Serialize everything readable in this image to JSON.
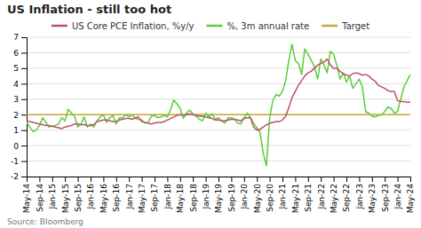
{
  "chart_data": {
    "type": "line",
    "title": "US Inflation - still too hot",
    "source": "Source: Bloomberg",
    "categories": [
      "May-14",
      null,
      null,
      null,
      "Sep-14",
      null,
      null,
      null,
      "Jan-15",
      null,
      null,
      null,
      "May-15",
      null,
      null,
      null,
      "Sep-15",
      null,
      null,
      null,
      "Jan-16",
      null,
      null,
      null,
      "May-16",
      null,
      null,
      null,
      "Sep-16",
      null,
      null,
      null,
      "Jan-17",
      null,
      null,
      null,
      "May-17",
      null,
      null,
      null,
      "Sep-17",
      null,
      null,
      null,
      "Jan-18",
      null,
      null,
      null,
      "May-18",
      null,
      null,
      null,
      "Sep-18",
      null,
      null,
      null,
      "Jan-19",
      null,
      null,
      null,
      "May-19",
      null,
      null,
      null,
      "Sep-19",
      null,
      null,
      null,
      "Jan-20",
      null,
      null,
      null,
      "May-20",
      null,
      null,
      null,
      "Sep-20",
      null,
      null,
      null,
      "Jan-21",
      null,
      null,
      null,
      "May-21",
      null,
      null,
      null,
      "Sep-21",
      null,
      null,
      null,
      "Jan-22",
      null,
      null,
      null,
      "May-22",
      null,
      null,
      null,
      "Sep-22",
      null,
      null,
      null,
      "Jan-23",
      null,
      null,
      null,
      "May-23",
      null,
      null,
      null,
      "Sep-23",
      null,
      null,
      null,
      "Jan-24",
      null,
      null,
      null,
      "May-24"
    ],
    "series": [
      {
        "name": "US Core PCE Inflation, %y/y",
        "color": "#c0506a",
        "values": [
          1.55,
          1.55,
          1.5,
          1.45,
          1.4,
          1.35,
          1.3,
          1.3,
          1.25,
          1.2,
          1.15,
          1.1,
          1.2,
          1.25,
          1.3,
          1.4,
          1.4,
          1.35,
          1.35,
          1.3,
          1.3,
          1.35,
          1.55,
          1.6,
          1.65,
          1.65,
          1.6,
          1.55,
          1.55,
          1.65,
          1.7,
          1.75,
          1.75,
          1.7,
          1.8,
          1.85,
          1.55,
          1.5,
          1.45,
          1.4,
          1.45,
          1.5,
          1.5,
          1.55,
          1.65,
          1.75,
          1.85,
          1.95,
          2.0,
          1.95,
          2.0,
          2.05,
          2.0,
          1.95,
          1.9,
          1.9,
          1.85,
          1.8,
          1.75,
          1.65,
          1.65,
          1.6,
          1.6,
          1.65,
          1.7,
          1.7,
          1.65,
          1.6,
          1.75,
          1.8,
          1.8,
          1.2,
          1.0,
          1.05,
          1.2,
          1.35,
          1.45,
          1.5,
          1.55,
          1.55,
          1.65,
          1.9,
          2.45,
          3.1,
          3.5,
          3.9,
          4.2,
          4.5,
          4.7,
          4.8,
          5.0,
          5.2,
          5.3,
          5.4,
          5.6,
          5.2,
          5.0,
          5.0,
          4.8,
          4.65,
          4.55,
          4.5,
          4.65,
          4.7,
          4.65,
          4.55,
          4.6,
          4.5,
          4.3,
          4.15,
          3.9,
          3.8,
          3.7,
          3.55,
          3.5,
          3.5,
          2.9,
          2.85,
          2.85,
          2.8,
          2.8
        ]
      },
      {
        "name": "%, 3m annual rate",
        "color": "#5acd3a",
        "values": [
          1.5,
          1.2,
          0.9,
          1.0,
          1.3,
          1.8,
          1.5,
          1.2,
          1.25,
          1.3,
          1.4,
          1.8,
          1.6,
          2.35,
          2.1,
          1.9,
          1.2,
          1.4,
          1.85,
          1.2,
          1.4,
          1.2,
          1.6,
          1.85,
          2.0,
          1.5,
          1.8,
          1.95,
          1.4,
          1.8,
          1.8,
          2.0,
          1.85,
          2.0,
          1.75,
          1.7,
          1.65,
          1.45,
          1.5,
          1.9,
          1.95,
          1.8,
          1.85,
          1.95,
          1.85,
          2.3,
          2.95,
          2.7,
          2.4,
          1.75,
          2.1,
          2.3,
          2.05,
          1.9,
          1.7,
          1.6,
          2.1,
          1.85,
          2.05,
          1.7,
          1.8,
          1.6,
          1.45,
          1.8,
          1.8,
          1.7,
          1.45,
          1.4,
          1.8,
          2.1,
          1.8,
          1.45,
          1.15,
          0.85,
          -0.5,
          -1.3,
          1.8,
          2.9,
          3.3,
          3.2,
          3.5,
          4.2,
          5.5,
          6.55,
          5.5,
          5.3,
          4.6,
          6.25,
          5.9,
          5.5,
          5.1,
          4.3,
          5.6,
          5.2,
          4.7,
          6.1,
          5.9,
          5.2,
          4.3,
          4.7,
          4.1,
          4.5,
          3.7,
          4.0,
          4.3,
          3.8,
          2.2,
          2.1,
          1.9,
          1.85,
          1.95,
          2.0,
          2.2,
          2.5,
          2.4,
          2.1,
          2.2,
          3.0,
          3.8,
          4.2,
          4.6
        ]
      }
    ],
    "reference_line": {
      "name": "Target",
      "color": "#c8a830",
      "value": 2.0
    },
    "ylim": [
      -2,
      7
    ],
    "yticks": [
      -2,
      -1,
      0,
      1,
      2,
      3,
      4,
      5,
      6,
      7
    ],
    "grid": true,
    "legend": "top"
  }
}
